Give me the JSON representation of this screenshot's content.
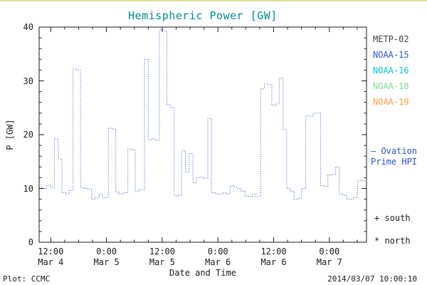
{
  "title": "Hemispheric Power [GW]",
  "colors": {
    "title": "#008b8b",
    "axis": "#1a1a1a"
  },
  "footer": {
    "plot_source": "Plot: CCMC",
    "timestamp": "2014/03/07 10:00:10"
  },
  "legend": {
    "satellites": [
      {
        "label": "METP-02",
        "color": "#404048"
      },
      {
        "label": "NOAA-15",
        "color": "#2d52cc"
      },
      {
        "label": "NOAA-16",
        "color": "#00c8c8"
      },
      {
        "label": "NOAA-18",
        "color": "#7fdc8f"
      },
      {
        "label": "NOAA-19",
        "color": "#ff9f40"
      }
    ],
    "ovation": {
      "line1": "– Ovation",
      "line2": "Prime HPI",
      "color": "#2d52cc"
    },
    "south_label": "+ south",
    "north_label": "* north"
  },
  "chart_data": {
    "type": "line",
    "title": "Hemispheric Power [GW]",
    "xlabel": "Date and Time",
    "ylabel": "P [GW]",
    "ylim": [
      0,
      40
    ],
    "yticks": [
      0,
      10,
      20,
      30,
      40
    ],
    "y_minor_step": 2,
    "x_minor_step_hours": 3,
    "x_range_hours": [
      9.5,
      80
    ],
    "xticks": [
      {
        "hour": 12,
        "time": "12:00",
        "date": "Mar 4"
      },
      {
        "hour": 24,
        "time": "0:00",
        "date": "Mar 5"
      },
      {
        "hour": 36,
        "time": "12:00",
        "date": "Mar 5"
      },
      {
        "hour": 48,
        "time": "0:00",
        "date": "Mar 6"
      },
      {
        "hour": 60,
        "time": "12:00",
        "date": "Mar 6"
      },
      {
        "hour": 72,
        "time": "0:00",
        "date": "Mar 7"
      }
    ],
    "line": {
      "color": "#2d52cc",
      "style": "dotted"
    },
    "legend_position": "right-outside",
    "grid": false,
    "series": [
      {
        "name": "Ovation Prime HPI",
        "step": true,
        "points": [
          [
            9.5,
            10.2
          ],
          [
            10.3,
            10.0
          ],
          [
            11.1,
            10.6
          ],
          [
            12.0,
            10.2
          ],
          [
            12.8,
            19.2
          ],
          [
            13.6,
            15.5
          ],
          [
            14.4,
            9.2
          ],
          [
            15.2,
            9.0
          ],
          [
            16.0,
            9.6
          ],
          [
            16.8,
            32.3
          ],
          [
            17.6,
            32.0
          ],
          [
            18.4,
            10.2
          ],
          [
            19.2,
            10.0
          ],
          [
            20.0,
            9.8
          ],
          [
            20.8,
            8.0
          ],
          [
            21.6,
            8.2
          ],
          [
            22.4,
            9.0
          ],
          [
            23.2,
            8.3
          ],
          [
            24.4,
            21.2
          ],
          [
            25.2,
            21.0
          ],
          [
            26.0,
            9.3
          ],
          [
            26.8,
            9.0
          ],
          [
            27.6,
            9.2
          ],
          [
            28.6,
            17.3
          ],
          [
            29.4,
            17.2
          ],
          [
            30.2,
            9.5
          ],
          [
            31.0,
            9.8
          ],
          [
            32.2,
            34.0
          ],
          [
            33.0,
            19.0
          ],
          [
            33.8,
            19.2
          ],
          [
            34.6,
            19.0
          ],
          [
            35.4,
            39.5
          ],
          [
            36.2,
            39.3
          ],
          [
            37.0,
            25.6
          ],
          [
            37.8,
            25.0
          ],
          [
            38.6,
            8.6
          ],
          [
            39.4,
            8.8
          ],
          [
            40.2,
            17.0
          ],
          [
            41.0,
            13.0
          ],
          [
            41.8,
            16.5
          ],
          [
            42.6,
            11.0
          ],
          [
            43.4,
            12.0
          ],
          [
            44.2,
            12.1
          ],
          [
            45.0,
            11.9
          ],
          [
            45.8,
            23.0
          ],
          [
            46.6,
            9.2
          ],
          [
            47.4,
            9.0
          ],
          [
            48.2,
            9.0
          ],
          [
            49.0,
            9.2
          ],
          [
            49.8,
            9.0
          ],
          [
            50.6,
            10.5
          ],
          [
            51.4,
            10.3
          ],
          [
            52.2,
            10.0
          ],
          [
            53.0,
            9.5
          ],
          [
            53.8,
            8.6
          ],
          [
            54.6,
            8.5
          ],
          [
            55.4,
            9.0
          ],
          [
            56.2,
            8.5
          ],
          [
            57.2,
            28.5
          ],
          [
            58.0,
            29.5
          ],
          [
            58.8,
            29.3
          ],
          [
            59.6,
            25.5
          ],
          [
            60.4,
            25.7
          ],
          [
            61.2,
            30.5
          ],
          [
            62.0,
            21.0
          ],
          [
            62.8,
            10.0
          ],
          [
            63.6,
            9.5
          ],
          [
            64.4,
            8.0
          ],
          [
            65.2,
            8.2
          ],
          [
            66.0,
            10.0
          ],
          [
            66.9,
            23.5
          ],
          [
            67.7,
            23.4
          ],
          [
            68.5,
            24.0
          ],
          [
            69.3,
            24.0
          ],
          [
            70.1,
            10.5
          ],
          [
            70.9,
            10.4
          ],
          [
            71.7,
            12.5
          ],
          [
            72.5,
            12.6
          ],
          [
            73.3,
            14.0
          ],
          [
            74.1,
            9.0
          ],
          [
            74.9,
            8.8
          ],
          [
            75.7,
            8.0
          ],
          [
            76.5,
            8.0
          ],
          [
            77.3,
            8.3
          ],
          [
            78.1,
            11.5
          ],
          [
            79.0,
            11.4
          ]
        ]
      }
    ]
  }
}
